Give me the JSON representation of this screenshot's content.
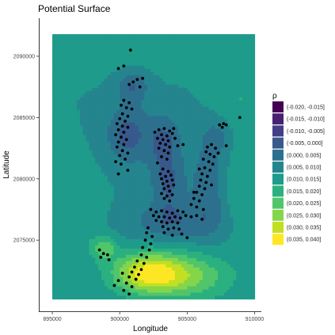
{
  "chart_data": {
    "type": "heatmap",
    "title": "Potential Surface",
    "xlabel": "Longitude",
    "ylabel": "Latitude",
    "xlim": [
      894000,
      910500
    ],
    "ylim": [
      2069200,
      2093100
    ],
    "x_ticks": [
      895000,
      900000,
      905000,
      910000
    ],
    "x_tick_labels": [
      "895000",
      "900000",
      "905000",
      "910000"
    ],
    "y_ticks": [
      2075000,
      2080000,
      2085000,
      2090000
    ],
    "y_tick_labels": [
      "2075000",
      "2080000",
      "2085000",
      "2090000"
    ],
    "grid": false,
    "legend_position": "right",
    "legend": {
      "title": "ρ",
      "bins": [
        {
          "label": "(-0.020, -0.015]",
          "color": "#440154"
        },
        {
          "label": "(-0.015, -0.010]",
          "color": "#482173"
        },
        {
          "label": "(-0.010, -0.005]",
          "color": "#433E85"
        },
        {
          "label": "(-0.005, 0.000]",
          "color": "#38598C"
        },
        {
          "label": "(0.000, 0.005]",
          "color": "#2D708E"
        },
        {
          "label": "(0.005, 0.010]",
          "color": "#25858E"
        },
        {
          "label": "(0.010, 0.015]",
          "color": "#1E9B8A"
        },
        {
          "label": "(0.015, 0.020]",
          "color": "#2BB07F"
        },
        {
          "label": "(0.020, 0.025]",
          "color": "#51C56A"
        },
        {
          "label": "(0.025, 0.030]",
          "color": "#85D54A"
        },
        {
          "label": "(0.030, 0.035]",
          "color": "#C2DF23"
        },
        {
          "label": "(0.035, 0.040]",
          "color": "#FDE725"
        }
      ]
    },
    "surface": {
      "x_range": [
        895000,
        910000
      ],
      "y_range": [
        2070200,
        2091800
      ],
      "base_value": 0.01,
      "kernels": [
        {
          "x": 900600,
          "y": 2083600,
          "amp": -0.012,
          "sx": 1100,
          "sy": 1700
        },
        {
          "x": 901000,
          "y": 2087600,
          "amp": -0.01,
          "sx": 800,
          "sy": 900
        },
        {
          "x": 903300,
          "y": 2083000,
          "amp": -0.011,
          "sx": 900,
          "sy": 1600
        },
        {
          "x": 903600,
          "y": 2079500,
          "amp": -0.01,
          "sx": 900,
          "sy": 1600
        },
        {
          "x": 904000,
          "y": 2076500,
          "amp": -0.009,
          "sx": 2300,
          "sy": 1100
        },
        {
          "x": 906700,
          "y": 2079500,
          "amp": -0.01,
          "sx": 900,
          "sy": 2600
        },
        {
          "x": 907300,
          "y": 2083500,
          "amp": -0.006,
          "sx": 800,
          "sy": 1000
        },
        {
          "x": 902100,
          "y": 2072300,
          "amp": 0.026,
          "sx": 1900,
          "sy": 1200
        },
        {
          "x": 905500,
          "y": 2072000,
          "amp": 0.013,
          "sx": 2200,
          "sy": 1400
        },
        {
          "x": 898800,
          "y": 2074400,
          "amp": 0.012,
          "sx": 700,
          "sy": 700
        },
        {
          "x": 896000,
          "y": 2077500,
          "amp": 0.005,
          "sx": 1600,
          "sy": 2500
        },
        {
          "x": 909000,
          "y": 2086500,
          "amp": 0.005,
          "sx": 1300,
          "sy": 2200
        },
        {
          "x": 908500,
          "y": 2079000,
          "amp": 0.004,
          "sx": 1200,
          "sy": 2500
        },
        {
          "x": 901000,
          "y": 2090500,
          "amp": 0.003,
          "sx": 2500,
          "sy": 1300
        }
      ]
    },
    "points": [
      [
        900800,
        2090500
      ],
      [
        900300,
        2089200
      ],
      [
        899900,
        2089000
      ],
      [
        901700,
        2088200
      ],
      [
        901300,
        2088100
      ],
      [
        901000,
        2087900
      ],
      [
        900700,
        2087700
      ],
      [
        901500,
        2087500
      ],
      [
        900300,
        2086400
      ],
      [
        900700,
        2086200
      ],
      [
        900100,
        2086000
      ],
      [
        900500,
        2085800
      ],
      [
        900900,
        2085700
      ],
      [
        900200,
        2085300
      ],
      [
        900600,
        2085100
      ],
      [
        900000,
        2084900
      ],
      [
        900400,
        2084700
      ],
      [
        899800,
        2084500
      ],
      [
        900200,
        2084300
      ],
      [
        900600,
        2084200
      ],
      [
        899900,
        2084000
      ],
      [
        900300,
        2083800
      ],
      [
        899700,
        2083600
      ],
      [
        900100,
        2083400
      ],
      [
        900500,
        2083200
      ],
      [
        899900,
        2083000
      ],
      [
        900300,
        2082800
      ],
      [
        899800,
        2082600
      ],
      [
        900200,
        2082300
      ],
      [
        900600,
        2082100
      ],
      [
        900000,
        2081900
      ],
      [
        900400,
        2081600
      ],
      [
        899700,
        2081400
      ],
      [
        900100,
        2081200
      ],
      [
        900600,
        2080700
      ],
      [
        899900,
        2080400
      ],
      [
        902900,
        2084000
      ],
      [
        903300,
        2084100
      ],
      [
        903700,
        2083900
      ],
      [
        904000,
        2084100
      ],
      [
        902600,
        2083800
      ],
      [
        903100,
        2083600
      ],
      [
        903500,
        2083500
      ],
      [
        903900,
        2083700
      ],
      [
        902800,
        2083300
      ],
      [
        903200,
        2083200
      ],
      [
        903600,
        2083100
      ],
      [
        904100,
        2083300
      ],
      [
        903000,
        2082900
      ],
      [
        903400,
        2082800
      ],
      [
        903700,
        2082600
      ],
      [
        902900,
        2082500
      ],
      [
        903300,
        2082300
      ],
      [
        903600,
        2082100
      ],
      [
        904300,
        2082700
      ],
      [
        904700,
        2082800
      ],
      [
        903100,
        2081800
      ],
      [
        903500,
        2081600
      ],
      [
        902800,
        2081300
      ],
      [
        903200,
        2080800
      ],
      [
        903600,
        2080600
      ],
      [
        903000,
        2080400
      ],
      [
        903400,
        2080200
      ],
      [
        903800,
        2080300
      ],
      [
        903100,
        2080000
      ],
      [
        903500,
        2079800
      ],
      [
        903900,
        2079900
      ],
      [
        903200,
        2079600
      ],
      [
        903600,
        2079400
      ],
      [
        904000,
        2079500
      ],
      [
        903300,
        2079200
      ],
      [
        903700,
        2079000
      ],
      [
        903100,
        2078800
      ],
      [
        903500,
        2078600
      ],
      [
        903900,
        2078700
      ],
      [
        903300,
        2078400
      ],
      [
        903700,
        2078200
      ],
      [
        902300,
        2077500
      ],
      [
        902700,
        2077300
      ],
      [
        903100,
        2077400
      ],
      [
        903500,
        2077300
      ],
      [
        903900,
        2077200
      ],
      [
        904300,
        2077400
      ],
      [
        904700,
        2077300
      ],
      [
        902500,
        2077000
      ],
      [
        902900,
        2076900
      ],
      [
        903300,
        2076900
      ],
      [
        903700,
        2076800
      ],
      [
        904100,
        2076900
      ],
      [
        904500,
        2076800
      ],
      [
        904900,
        2077000
      ],
      [
        902700,
        2076600
      ],
      [
        903100,
        2076500
      ],
      [
        903500,
        2076400
      ],
      [
        903900,
        2076500
      ],
      [
        904300,
        2076400
      ],
      [
        905300,
        2076900
      ],
      [
        905700,
        2077000
      ],
      [
        906100,
        2076700
      ],
      [
        903200,
        2076100
      ],
      [
        903600,
        2075900
      ],
      [
        904000,
        2076000
      ],
      [
        904400,
        2075900
      ],
      [
        903300,
        2075600
      ],
      [
        903900,
        2075400
      ],
      [
        904600,
        2075500
      ],
      [
        905000,
        2075200
      ],
      [
        902100,
        2076000
      ],
      [
        902000,
        2075600
      ],
      [
        902400,
        2075300
      ],
      [
        901900,
        2075000
      ],
      [
        902300,
        2074700
      ],
      [
        901700,
        2074400
      ],
      [
        902200,
        2074200
      ],
      [
        901600,
        2073800
      ],
      [
        902000,
        2073600
      ],
      [
        901300,
        2073300
      ],
      [
        901800,
        2073100
      ],
      [
        901100,
        2072800
      ],
      [
        901600,
        2072600
      ],
      [
        900900,
        2072400
      ],
      [
        901400,
        2072200
      ],
      [
        900700,
        2072000
      ],
      [
        901200,
        2071800
      ],
      [
        900500,
        2071500
      ],
      [
        900900,
        2071200
      ],
      [
        900300,
        2070900
      ],
      [
        900700,
        2070600
      ],
      [
        899900,
        2071700
      ],
      [
        900200,
        2072300
      ],
      [
        899600,
        2071300
      ],
      [
        898500,
        2074200
      ],
      [
        898800,
        2073900
      ],
      [
        899100,
        2073800
      ],
      [
        898600,
        2073600
      ],
      [
        899200,
        2073400
      ],
      [
        906500,
        2082600
      ],
      [
        906800,
        2082800
      ],
      [
        907100,
        2082500
      ],
      [
        906400,
        2082200
      ],
      [
        906700,
        2082000
      ],
      [
        907000,
        2081800
      ],
      [
        907300,
        2082100
      ],
      [
        906200,
        2081600
      ],
      [
        906600,
        2081400
      ],
      [
        906900,
        2081200
      ],
      [
        906300,
        2080900
      ],
      [
        906700,
        2080700
      ],
      [
        906100,
        2080400
      ],
      [
        906500,
        2080200
      ],
      [
        906000,
        2079900
      ],
      [
        906400,
        2079700
      ],
      [
        905900,
        2079400
      ],
      [
        906300,
        2079200
      ],
      [
        905700,
        2078900
      ],
      [
        906100,
        2078700
      ],
      [
        905500,
        2078400
      ],
      [
        905900,
        2078200
      ],
      [
        905300,
        2077900
      ],
      [
        905700,
        2077700
      ],
      [
        906200,
        2077500
      ],
      [
        905500,
        2078900
      ],
      [
        905900,
        2080800
      ],
      [
        906800,
        2079500
      ],
      [
        907400,
        2084400
      ],
      [
        907700,
        2084500
      ],
      [
        907900,
        2084400
      ],
      [
        907600,
        2084200
      ],
      [
        907900,
        2082700
      ],
      [
        908900,
        2085000
      ]
    ]
  }
}
